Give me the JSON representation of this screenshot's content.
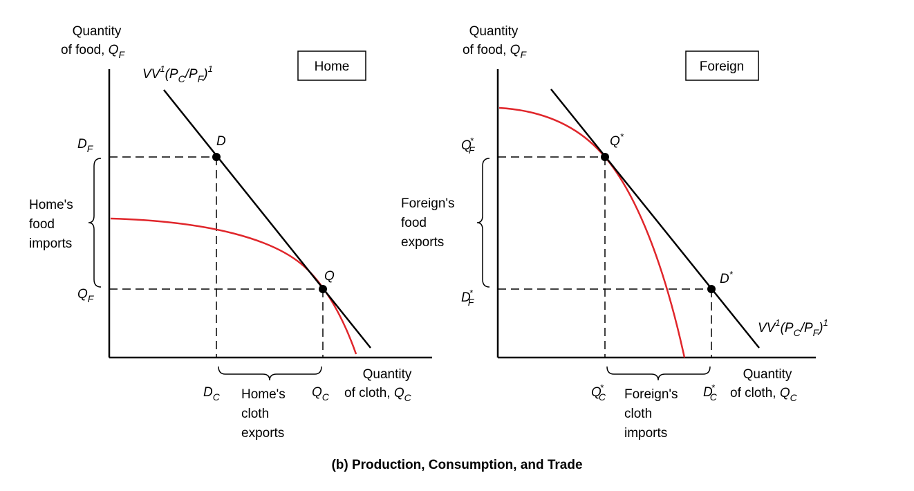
{
  "caption": "(b) Production, Consumption, and Trade",
  "colors": {
    "ppf": "#e0262b",
    "line": "#000000",
    "dash": "#000000"
  },
  "home": {
    "box_label": "Home",
    "y_axis": {
      "line1": "Quantity",
      "line2_prefix": "of food, ",
      "var": "Q",
      "sub": "F"
    },
    "x_axis": {
      "line1": "Quantity",
      "line2_prefix": "of cloth, ",
      "var": "Q",
      "sub": "C"
    },
    "budget_line": {
      "vv": "VV",
      "sup1": "1",
      "open": "(P",
      "sub_c": "C",
      "slash": "/P",
      "sub_f": "F",
      "close": ")",
      "sup2": "1"
    },
    "point_d": "D",
    "point_q": "Q",
    "y_tick_top": {
      "var": "D",
      "sub": "F"
    },
    "y_tick_bottom": {
      "var": "Q",
      "sub": "F"
    },
    "x_tick_left": {
      "var": "D",
      "sub": "C"
    },
    "x_tick_right": {
      "var": "Q",
      "sub": "C"
    },
    "side_bracket": [
      "Home's",
      "food",
      "imports"
    ],
    "bottom_bracket": [
      "Home's",
      "cloth",
      "exports"
    ]
  },
  "foreign": {
    "box_label": "Foreign",
    "y_axis": {
      "line1": "Quantity",
      "line2_prefix": "of food, ",
      "var": "Q",
      "sub": "F"
    },
    "x_axis": {
      "line1": "Quantity",
      "line2_prefix": "of cloth, ",
      "var": "Q",
      "sub": "C"
    },
    "budget_line": {
      "vv": "VV",
      "sup1": "1",
      "open": "(P",
      "sub_c": "C",
      "slash": "/P",
      "sub_f": "F",
      "close": ")",
      "sup2": "1"
    },
    "point_q": {
      "var": "Q",
      "star": "*"
    },
    "point_d": {
      "var": "D",
      "star": "*"
    },
    "y_tick_top": {
      "var": "Q",
      "sub": "F",
      "star": "*"
    },
    "y_tick_bottom": {
      "var": "D",
      "sub": "F",
      "star": "*"
    },
    "x_tick_left": {
      "var": "Q",
      "sub": "C",
      "star": "*"
    },
    "x_tick_right": {
      "var": "D",
      "sub": "C",
      "star": "*"
    },
    "side_bracket": [
      "Foreign's",
      "food",
      "exports"
    ],
    "bottom_bracket": [
      "Foreign's",
      "cloth",
      "imports"
    ]
  }
}
